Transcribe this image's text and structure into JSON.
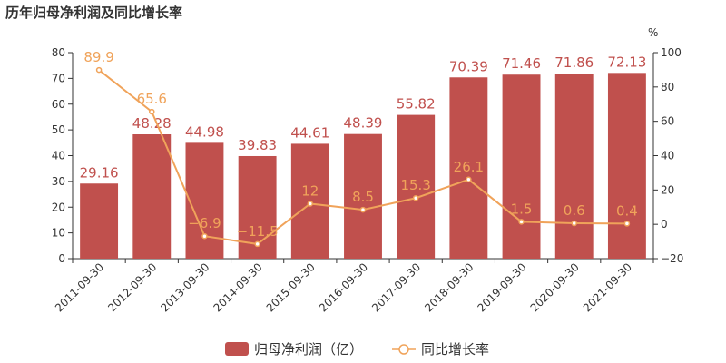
{
  "chart_data": {
    "type": "bar",
    "title": "历年归母净利润及同比增长率",
    "categories": [
      "2011-09-30",
      "2012-09-30",
      "2013-09-30",
      "2014-09-30",
      "2015-09-30",
      "2016-09-30",
      "2017-09-30",
      "2018-09-30",
      "2019-09-30",
      "2020-09-30",
      "2021-09-30"
    ],
    "series": [
      {
        "name": "归母净利润（亿）",
        "type": "bar",
        "axis": "left",
        "color": "#c0504d",
        "values": [
          29.16,
          48.28,
          44.98,
          39.83,
          44.61,
          48.39,
          55.82,
          70.39,
          71.46,
          71.86,
          72.13
        ],
        "labels": [
          "29.16",
          "48.28",
          "44.98",
          "39.83",
          "44.61",
          "48.39",
          "55.82",
          "70.39",
          "71.46",
          "71.86",
          "72.13"
        ]
      },
      {
        "name": "同比增长率",
        "type": "line",
        "axis": "right",
        "color": "#f0a35a",
        "values": [
          89.9,
          65.6,
          -6.9,
          -11.5,
          12,
          8.5,
          15.3,
          26.1,
          1.5,
          0.6,
          0.4
        ],
        "labels": [
          "89.9",
          "65.6",
          "−6.9",
          "−11.5",
          "12",
          "8.5",
          "15.3",
          "26.1",
          "1.5",
          "0.6",
          "0.4"
        ]
      }
    ],
    "y_left": {
      "min": 0,
      "max": 80,
      "ticks": [
        "0",
        "10",
        "20",
        "30",
        "40",
        "50",
        "60",
        "70",
        "80"
      ]
    },
    "y_right": {
      "min": -20,
      "max": 100,
      "unit": "%",
      "ticks": [
        "−20",
        "0",
        "20",
        "40",
        "60",
        "80",
        "100"
      ]
    },
    "grid": false,
    "legend_position": "bottom"
  }
}
